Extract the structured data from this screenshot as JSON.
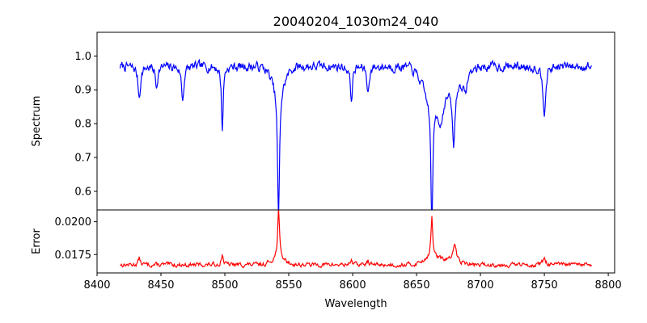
{
  "chart_data": {
    "type": "line",
    "title": "20040204_1030m24_040",
    "xlabel": "Wavelength",
    "xlim": [
      8400,
      8805
    ],
    "x_ticks": [
      8400,
      8450,
      8500,
      8550,
      8600,
      8650,
      8700,
      8750,
      8800
    ],
    "x_range": [
      8418,
      8787
    ],
    "grid": false,
    "legend": "none",
    "panels": [
      {
        "name": "spectrum",
        "ylabel": "Spectrum",
        "ylim": [
          0.545,
          1.07
        ],
        "y_ticks": [
          0.6,
          0.7,
          0.8,
          0.9,
          1.0
        ],
        "y_tick_labels": [
          "0.6",
          "0.7",
          "0.8",
          "0.9",
          "1.0"
        ],
        "color": "#0000ff",
        "baseline": 0.97,
        "noise": 0.025,
        "seed": 7,
        "features": [
          {
            "center": 8433.0,
            "depth": 0.09,
            "width": 1.2
          },
          {
            "center": 8446.5,
            "depth": 0.06,
            "width": 1.0
          },
          {
            "center": 8467.0,
            "depth": 0.1,
            "width": 1.1
          },
          {
            "center": 8498.0,
            "depth": 0.19,
            "width": 0.8
          },
          {
            "center": 8542.0,
            "depth": 0.4,
            "width": 0.9
          },
          {
            "center": 8599.0,
            "depth": 0.1,
            "width": 1.0
          },
          {
            "center": 8612.0,
            "depth": 0.08,
            "width": 1.0
          },
          {
            "center": 8662.0,
            "depth": 0.37,
            "width": 0.9
          },
          {
            "center": 8669.0,
            "depth": 0.08,
            "width": 2.5
          },
          {
            "center": 8679.0,
            "depth": 0.18,
            "width": 1.2
          },
          {
            "center": 8688.0,
            "depth": 0.06,
            "width": 1.5
          },
          {
            "center": 8750.0,
            "depth": 0.13,
            "width": 1.3
          }
        ],
        "depressions": [
          {
            "center": 8542.0,
            "depth": 0.06,
            "width": 5.0
          },
          {
            "center": 8662.0,
            "depth": 0.09,
            "width": 7.0
          },
          {
            "center": 8678.0,
            "depth": 0.05,
            "width": 8.0
          }
        ]
      },
      {
        "name": "error",
        "ylabel": "Error",
        "ylim": [
          0.0161,
          0.0209
        ],
        "y_ticks": [
          0.0175,
          0.02
        ],
        "y_tick_labels": [
          "0.0175",
          "0.0200"
        ],
        "color": "#ff0000",
        "baseline": 0.01672,
        "noise": 0.0003,
        "seed": 13,
        "features": [
          {
            "center": 8542.0,
            "depth": -0.0038,
            "width": 0.8
          },
          {
            "center": 8662.0,
            "depth": -0.003,
            "width": 0.8
          },
          {
            "center": 8680.0,
            "depth": -0.0012,
            "width": 1.2
          },
          {
            "center": 8498.0,
            "depth": -0.0008,
            "width": 0.9
          },
          {
            "center": 8750.0,
            "depth": -0.0006,
            "width": 1.2
          },
          {
            "center": 8433.0,
            "depth": -0.0005,
            "width": 1.0
          },
          {
            "center": 8599.0,
            "depth": -0.0004,
            "width": 1.0
          },
          {
            "center": 8612.0,
            "depth": -0.0003,
            "width": 1.0
          }
        ],
        "depressions": [
          {
            "center": 8542.0,
            "depth": -0.0005,
            "width": 5.0
          },
          {
            "center": 8662.0,
            "depth": -0.0006,
            "width": 6.0
          },
          {
            "center": 8678.0,
            "depth": -0.0004,
            "width": 6.0
          }
        ]
      }
    ]
  }
}
